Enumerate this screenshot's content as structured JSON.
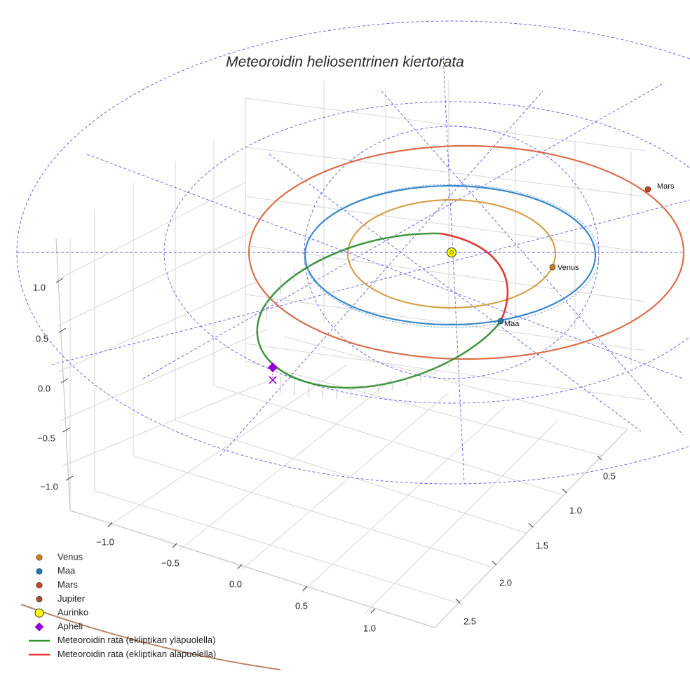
{
  "chart_data": {
    "type": "3d-orbit",
    "title": "Meteoroidin heliosentrinen kiertorata",
    "axes": {
      "x": {
        "ticks": [
          "−1.0",
          "−0.5",
          "0.0",
          "0.5",
          "1.0"
        ]
      },
      "y": {
        "ticks": [
          "0.5",
          "1.0",
          "1.5",
          "2.0",
          "2.5"
        ]
      },
      "z": {
        "ticks": [
          "1.0",
          "0.5",
          "0.0",
          "−0.5",
          "−1.0"
        ]
      }
    },
    "grid": true,
    "planets": [
      {
        "name": "Venus",
        "orbit_radius_au": 0.72,
        "color": "#d4a04a",
        "marker_color": "#d27d1e"
      },
      {
        "name": "Maa",
        "orbit_radius_au": 1.0,
        "color": "#3a86c8",
        "marker_color": "#1f77b4"
      },
      {
        "name": "Mars",
        "orbit_radius_au": 1.52,
        "color": "#db6e4a",
        "marker_color": "#c8461e"
      },
      {
        "name": "Jupiter",
        "orbit_radius_au": 5.2,
        "color": "#b5876a",
        "marker_color": "#a0522d"
      }
    ],
    "sun": {
      "name": "Aurinko",
      "color": "#ffff00"
    },
    "aphelion": {
      "name": "Apheli",
      "color": "#9400d3"
    },
    "meteoroid_orbit": {
      "above_label": "Meteoroidin rata (ekliptikan yläpuolella)",
      "below_label": "Meteoroidin rata (ekliptikan alapuolella)",
      "above_color": "#2e8b2e",
      "below_color": "#e02020"
    },
    "legend": [
      {
        "label": "Venus",
        "kind": "dot",
        "color": "#d27d1e"
      },
      {
        "label": "Maa",
        "kind": "dot",
        "color": "#1f77b4"
      },
      {
        "label": "Mars",
        "kind": "dot",
        "color": "#c8461e"
      },
      {
        "label": "Jupiter",
        "kind": "dot",
        "color": "#a0522d"
      },
      {
        "label": "Aurinko",
        "kind": "sun",
        "color": "#ffff00"
      },
      {
        "label": "Apheli",
        "kind": "diamond",
        "color": "#9400d3"
      },
      {
        "label": "Meteoroidin rata (ekliptikan yläpuolella)",
        "kind": "line",
        "color": "#1a8a1a"
      },
      {
        "label": "Meteoroidin rata (ekliptikan alapuolella)",
        "kind": "line",
        "color": "#e02020"
      }
    ],
    "legend_position": "bottom-left"
  }
}
